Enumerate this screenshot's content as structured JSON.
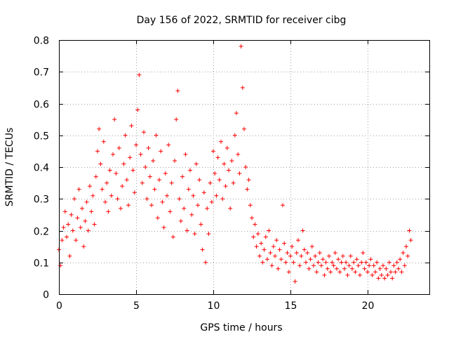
{
  "chart_data": {
    "type": "scatter",
    "title": "Day 156 of 2022, SRMTID for receiver cibg",
    "xlabel": "GPS time / hours",
    "ylabel": "SRMTID / TECUs",
    "xlim": [
      0,
      24
    ],
    "ylim": [
      0,
      0.8
    ],
    "x_ticks": [
      0,
      5,
      10,
      15,
      20
    ],
    "x_tick_labels": [
      "0",
      "5",
      "10",
      "15",
      "20"
    ],
    "y_ticks": [
      0,
      0.1,
      0.2,
      0.3,
      0.4,
      0.5,
      0.6,
      0.7,
      0.8
    ],
    "y_tick_labels": [
      "0",
      "0.1",
      "0.2",
      "0.3",
      "0.4",
      "0.5",
      "0.6",
      "0.7",
      "0.8"
    ],
    "grid": true,
    "marker": "+",
    "color": "#ff0000",
    "series": [
      {
        "name": "SRMTID",
        "points": [
          [
            0.0,
            0.14
          ],
          [
            0.1,
            0.09
          ],
          [
            0.2,
            0.17
          ],
          [
            0.3,
            0.21
          ],
          [
            0.4,
            0.26
          ],
          [
            0.5,
            0.18
          ],
          [
            0.6,
            0.22
          ],
          [
            0.7,
            0.12
          ],
          [
            0.8,
            0.25
          ],
          [
            0.9,
            0.2
          ],
          [
            1.0,
            0.3
          ],
          [
            1.1,
            0.17
          ],
          [
            1.2,
            0.24
          ],
          [
            1.3,
            0.33
          ],
          [
            1.4,
            0.21
          ],
          [
            1.5,
            0.27
          ],
          [
            1.6,
            0.15
          ],
          [
            1.7,
            0.23
          ],
          [
            1.8,
            0.29
          ],
          [
            1.9,
            0.2
          ],
          [
            2.0,
            0.34
          ],
          [
            2.1,
            0.26
          ],
          [
            2.2,
            0.31
          ],
          [
            2.3,
            0.22
          ],
          [
            2.4,
            0.37
          ],
          [
            2.5,
            0.45
          ],
          [
            2.6,
            0.52
          ],
          [
            2.7,
            0.41
          ],
          [
            2.8,
            0.33
          ],
          [
            2.9,
            0.48
          ],
          [
            3.0,
            0.29
          ],
          [
            3.1,
            0.35
          ],
          [
            3.2,
            0.26
          ],
          [
            3.3,
            0.39
          ],
          [
            3.4,
            0.31
          ],
          [
            3.5,
            0.44
          ],
          [
            3.6,
            0.55
          ],
          [
            3.7,
            0.38
          ],
          [
            3.8,
            0.3
          ],
          [
            3.9,
            0.46
          ],
          [
            4.0,
            0.27
          ],
          [
            4.1,
            0.34
          ],
          [
            4.2,
            0.41
          ],
          [
            4.3,
            0.5
          ],
          [
            4.4,
            0.36
          ],
          [
            4.5,
            0.28
          ],
          [
            4.6,
            0.43
          ],
          [
            4.7,
            0.53
          ],
          [
            4.8,
            0.39
          ],
          [
            4.9,
            0.32
          ],
          [
            5.0,
            0.47
          ],
          [
            5.1,
            0.58
          ],
          [
            5.2,
            0.69
          ],
          [
            5.3,
            0.44
          ],
          [
            5.4,
            0.35
          ],
          [
            5.5,
            0.51
          ],
          [
            5.6,
            0.4
          ],
          [
            5.7,
            0.3
          ],
          [
            5.8,
            0.46
          ],
          [
            5.9,
            0.37
          ],
          [
            6.0,
            0.28
          ],
          [
            6.1,
            0.42
          ],
          [
            6.2,
            0.33
          ],
          [
            6.3,
            0.5
          ],
          [
            6.4,
            0.24
          ],
          [
            6.5,
            0.36
          ],
          [
            6.6,
            0.45
          ],
          [
            6.7,
            0.29
          ],
          [
            6.8,
            0.21
          ],
          [
            6.9,
            0.38
          ],
          [
            7.0,
            0.31
          ],
          [
            7.1,
            0.47
          ],
          [
            7.2,
            0.26
          ],
          [
            7.3,
            0.35
          ],
          [
            7.4,
            0.18
          ],
          [
            7.5,
            0.42
          ],
          [
            7.6,
            0.55
          ],
          [
            7.7,
            0.64
          ],
          [
            7.8,
            0.3
          ],
          [
            7.9,
            0.23
          ],
          [
            8.0,
            0.37
          ],
          [
            8.1,
            0.27
          ],
          [
            8.2,
            0.44
          ],
          [
            8.3,
            0.2
          ],
          [
            8.4,
            0.33
          ],
          [
            8.5,
            0.39
          ],
          [
            8.6,
            0.25
          ],
          [
            8.7,
            0.31
          ],
          [
            8.8,
            0.19
          ],
          [
            8.9,
            0.41
          ],
          [
            9.0,
            0.28
          ],
          [
            9.1,
            0.36
          ],
          [
            9.2,
            0.22
          ],
          [
            9.3,
            0.14
          ],
          [
            9.4,
            0.32
          ],
          [
            9.5,
            0.1
          ],
          [
            9.6,
            0.27
          ],
          [
            9.7,
            0.19
          ],
          [
            9.8,
            0.35
          ],
          [
            9.9,
            0.29
          ],
          [
            10.0,
            0.45
          ],
          [
            10.1,
            0.38
          ],
          [
            10.2,
            0.31
          ],
          [
            10.3,
            0.43
          ],
          [
            10.4,
            0.36
          ],
          [
            10.5,
            0.48
          ],
          [
            10.6,
            0.3
          ],
          [
            10.7,
            0.41
          ],
          [
            10.8,
            0.34
          ],
          [
            10.9,
            0.46
          ],
          [
            11.0,
            0.39
          ],
          [
            11.1,
            0.27
          ],
          [
            11.2,
            0.42
          ],
          [
            11.3,
            0.35
          ],
          [
            11.4,
            0.5
          ],
          [
            11.5,
            0.57
          ],
          [
            11.6,
            0.44
          ],
          [
            11.7,
            0.38
          ],
          [
            11.8,
            0.78
          ],
          [
            11.9,
            0.65
          ],
          [
            12.0,
            0.52
          ],
          [
            12.1,
            0.4
          ],
          [
            12.2,
            0.33
          ],
          [
            12.3,
            0.36
          ],
          [
            12.4,
            0.28
          ],
          [
            12.5,
            0.24
          ],
          [
            12.6,
            0.18
          ],
          [
            12.7,
            0.22
          ],
          [
            12.8,
            0.15
          ],
          [
            12.9,
            0.19
          ],
          [
            13.0,
            0.12
          ],
          [
            13.1,
            0.16
          ],
          [
            13.2,
            0.1
          ],
          [
            13.3,
            0.14
          ],
          [
            13.4,
            0.18
          ],
          [
            13.5,
            0.11
          ],
          [
            13.6,
            0.2
          ],
          [
            13.7,
            0.13
          ],
          [
            13.8,
            0.09
          ],
          [
            13.9,
            0.15
          ],
          [
            14.0,
            0.12
          ],
          [
            14.1,
            0.17
          ],
          [
            14.2,
            0.08
          ],
          [
            14.3,
            0.14
          ],
          [
            14.4,
            0.11
          ],
          [
            14.5,
            0.28
          ],
          [
            14.6,
            0.16
          ],
          [
            14.7,
            0.1
          ],
          [
            14.8,
            0.13
          ],
          [
            14.9,
            0.07
          ],
          [
            15.0,
            0.12
          ],
          [
            15.1,
            0.15
          ],
          [
            15.2,
            0.1
          ],
          [
            15.3,
            0.04
          ],
          [
            15.4,
            0.13
          ],
          [
            15.5,
            0.17
          ],
          [
            15.6,
            0.09
          ],
          [
            15.7,
            0.12
          ],
          [
            15.8,
            0.2
          ],
          [
            15.9,
            0.14
          ],
          [
            16.0,
            0.1
          ],
          [
            16.1,
            0.13
          ],
          [
            16.2,
            0.08
          ],
          [
            16.3,
            0.11
          ],
          [
            16.4,
            0.15
          ],
          [
            16.5,
            0.09
          ],
          [
            16.6,
            0.12
          ],
          [
            16.7,
            0.07
          ],
          [
            16.8,
            0.1
          ],
          [
            16.9,
            0.13
          ],
          [
            17.0,
            0.09
          ],
          [
            17.1,
            0.11
          ],
          [
            17.2,
            0.06
          ],
          [
            17.3,
            0.1
          ],
          [
            17.4,
            0.08
          ],
          [
            17.5,
            0.12
          ],
          [
            17.6,
            0.07
          ],
          [
            17.7,
            0.1
          ],
          [
            17.8,
            0.09
          ],
          [
            17.9,
            0.13
          ],
          [
            18.0,
            0.08
          ],
          [
            18.1,
            0.11
          ],
          [
            18.2,
            0.07
          ],
          [
            18.3,
            0.1
          ],
          [
            18.4,
            0.12
          ],
          [
            18.5,
            0.08
          ],
          [
            18.6,
            0.1
          ],
          [
            18.7,
            0.06
          ],
          [
            18.8,
            0.09
          ],
          [
            18.9,
            0.12
          ],
          [
            19.0,
            0.08
          ],
          [
            19.1,
            0.1
          ],
          [
            19.2,
            0.07
          ],
          [
            19.3,
            0.11
          ],
          [
            19.4,
            0.09
          ],
          [
            19.5,
            0.06
          ],
          [
            19.6,
            0.1
          ],
          [
            19.7,
            0.13
          ],
          [
            19.8,
            0.08
          ],
          [
            19.9,
            0.1
          ],
          [
            20.0,
            0.07
          ],
          [
            20.1,
            0.09
          ],
          [
            20.2,
            0.11
          ],
          [
            20.3,
            0.06
          ],
          [
            20.4,
            0.09
          ],
          [
            20.5,
            0.07
          ],
          [
            20.6,
            0.1
          ],
          [
            20.7,
            0.05
          ],
          [
            20.8,
            0.08
          ],
          [
            20.9,
            0.06
          ],
          [
            21.0,
            0.09
          ],
          [
            21.1,
            0.05
          ],
          [
            21.2,
            0.08
          ],
          [
            21.3,
            0.06
          ],
          [
            21.4,
            0.1
          ],
          [
            21.5,
            0.07
          ],
          [
            21.6,
            0.05
          ],
          [
            21.7,
            0.09
          ],
          [
            21.8,
            0.07
          ],
          [
            21.9,
            0.1
          ],
          [
            22.0,
            0.08
          ],
          [
            22.1,
            0.11
          ],
          [
            22.2,
            0.07
          ],
          [
            22.3,
            0.13
          ],
          [
            22.4,
            0.09
          ],
          [
            22.5,
            0.15
          ],
          [
            22.6,
            0.12
          ],
          [
            22.7,
            0.2
          ],
          [
            22.8,
            0.17
          ]
        ]
      }
    ]
  }
}
